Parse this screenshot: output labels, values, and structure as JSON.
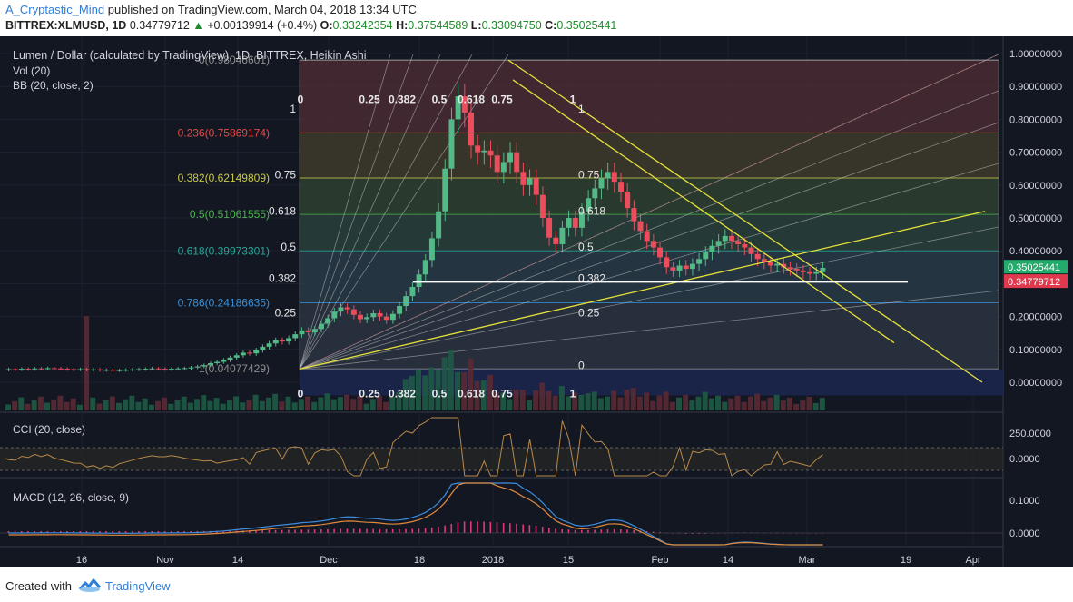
{
  "header": {
    "author": "A_Cryptastic_Mind",
    "published": "published on TradingView.com, March 04, 2018 13:34 UTC",
    "symbol": "BITTREX:XLMUSD, 1D",
    "last": "0.34779712",
    "change": "+0.00139914 (+0.4%)",
    "o_label": "O:",
    "o": "0.33242354",
    "h_label": "H:",
    "h": "0.37544589",
    "l_label": "L:",
    "l": "0.33094750",
    "c_label": "C:",
    "c": "0.35025441"
  },
  "legend": {
    "title": "Lumen / Dollar (calculated by TradingView), 1D, BITTREX, Heikin Ashi",
    "vol": "Vol (20)",
    "bb": "BB (20, close, 2)",
    "cci": "CCI (20, close)",
    "macd": "MACD (12, 26, close, 9)"
  },
  "footer": {
    "created": "Created with",
    "brand": "TradingView"
  },
  "colors": {
    "up": "#53b987",
    "down": "#eb4d5c",
    "fib_line": "#ffffff",
    "trendline": "#e5e03a",
    "price_badge_up": "#22ab6a",
    "price_badge_down": "#e0394d"
  },
  "chart_data": {
    "type": "candlestick",
    "title": "Lumen / Dollar (calculated by TradingView), 1D, BITTREX, Heikin Ashi",
    "x_tick_labels": [
      "16",
      "Nov",
      "14",
      "Dec",
      "18",
      "2018",
      "15",
      "Feb",
      "14",
      "Mar",
      "19",
      "Apr"
    ],
    "y_tick_labels": [
      "1.00000000",
      "0.90000000",
      "0.80000000",
      "0.70000000",
      "0.60000000",
      "0.50000000",
      "0.40000000",
      "0.30000000",
      "0.20000000",
      "0.10000000",
      "0.00000000"
    ],
    "ylim": [
      -0.04,
      1.02
    ],
    "current_price_labels": [
      "0.35025441",
      "0.34779712"
    ],
    "fib_retracement": [
      {
        "label": "0(0.98046601)",
        "value": 0.98046601
      },
      {
        "label": "0.236(0.75869174)",
        "value": 0.75869174
      },
      {
        "label": "0.382(0.62149809)",
        "value": 0.62149809
      },
      {
        "label": "0.5(0.51061555)",
        "value": 0.51061555
      },
      {
        "label": "0.618(0.39973301)",
        "value": 0.39973301
      },
      {
        "label": "0.786(0.24186635)",
        "value": 0.24186635
      },
      {
        "label": "1(0.04077429)",
        "value": 0.04077429
      }
    ],
    "fan_labels": [
      "0",
      "0.25",
      "0.382",
      "0.5",
      "0.618",
      "0.75",
      "1"
    ],
    "fib_labels": [
      "0",
      "0.25",
      "0.382",
      "0.5",
      "0.618",
      "0.75",
      "1"
    ],
    "support_level": 0.305,
    "candles": [
      [
        0.038,
        0.04
      ],
      [
        0.04,
        0.039
      ],
      [
        0.039,
        0.041
      ],
      [
        0.041,
        0.04
      ],
      [
        0.04,
        0.042
      ],
      [
        0.042,
        0.041
      ],
      [
        0.041,
        0.043
      ],
      [
        0.043,
        0.042
      ],
      [
        0.042,
        0.041
      ],
      [
        0.041,
        0.04
      ],
      [
        0.04,
        0.039
      ],
      [
        0.039,
        0.04
      ],
      [
        0.04,
        0.038
      ],
      [
        0.038,
        0.039
      ],
      [
        0.039,
        0.037
      ],
      [
        0.037,
        0.038
      ],
      [
        0.038,
        0.036
      ],
      [
        0.036,
        0.037
      ],
      [
        0.037,
        0.038
      ],
      [
        0.038,
        0.039
      ],
      [
        0.039,
        0.04
      ],
      [
        0.04,
        0.041
      ],
      [
        0.041,
        0.042
      ],
      [
        0.042,
        0.041
      ],
      [
        0.041,
        0.04
      ],
      [
        0.04,
        0.041
      ],
      [
        0.041,
        0.042
      ],
      [
        0.042,
        0.043
      ],
      [
        0.043,
        0.045
      ],
      [
        0.045,
        0.048
      ],
      [
        0.048,
        0.052
      ],
      [
        0.052,
        0.058
      ],
      [
        0.058,
        0.062
      ],
      [
        0.062,
        0.068
      ],
      [
        0.068,
        0.075
      ],
      [
        0.075,
        0.082
      ],
      [
        0.082,
        0.09
      ],
      [
        0.09,
        0.088
      ],
      [
        0.088,
        0.098
      ],
      [
        0.098,
        0.108
      ],
      [
        0.108,
        0.118
      ],
      [
        0.118,
        0.128
      ],
      [
        0.128,
        0.124
      ],
      [
        0.124,
        0.134
      ],
      [
        0.134,
        0.146
      ],
      [
        0.146,
        0.158
      ],
      [
        0.158,
        0.152
      ],
      [
        0.152,
        0.162
      ],
      [
        0.162,
        0.178
      ],
      [
        0.178,
        0.195
      ],
      [
        0.195,
        0.215
      ],
      [
        0.215,
        0.228
      ],
      [
        0.228,
        0.222
      ],
      [
        0.222,
        0.205
      ],
      [
        0.205,
        0.192
      ],
      [
        0.192,
        0.198
      ],
      [
        0.198,
        0.21
      ],
      [
        0.21,
        0.2
      ],
      [
        0.2,
        0.19
      ],
      [
        0.19,
        0.208
      ],
      [
        0.208,
        0.232
      ],
      [
        0.232,
        0.262
      ],
      [
        0.262,
        0.29
      ],
      [
        0.29,
        0.328
      ],
      [
        0.328,
        0.372
      ],
      [
        0.372,
        0.438
      ],
      [
        0.438,
        0.52
      ],
      [
        0.52,
        0.65
      ],
      [
        0.65,
        0.8
      ],
      [
        0.8,
        0.87
      ],
      [
        0.87,
        0.82
      ],
      [
        0.82,
        0.72
      ],
      [
        0.72,
        0.7
      ],
      [
        0.7,
        0.705
      ],
      [
        0.705,
        0.69
      ],
      [
        0.69,
        0.64
      ],
      [
        0.64,
        0.67
      ],
      [
        0.67,
        0.7
      ],
      [
        0.7,
        0.64
      ],
      [
        0.64,
        0.6
      ],
      [
        0.6,
        0.62
      ],
      [
        0.62,
        0.57
      ],
      [
        0.57,
        0.5
      ],
      [
        0.5,
        0.44
      ],
      [
        0.44,
        0.42
      ],
      [
        0.42,
        0.47
      ],
      [
        0.47,
        0.5
      ],
      [
        0.5,
        0.47
      ],
      [
        0.47,
        0.52
      ],
      [
        0.52,
        0.56
      ],
      [
        0.56,
        0.59
      ],
      [
        0.59,
        0.62
      ],
      [
        0.62,
        0.64
      ],
      [
        0.64,
        0.61
      ],
      [
        0.61,
        0.58
      ],
      [
        0.58,
        0.53
      ],
      [
        0.53,
        0.49
      ],
      [
        0.49,
        0.46
      ],
      [
        0.46,
        0.43
      ],
      [
        0.43,
        0.41
      ],
      [
        0.41,
        0.38
      ],
      [
        0.38,
        0.35
      ],
      [
        0.35,
        0.34
      ],
      [
        0.34,
        0.355
      ],
      [
        0.355,
        0.345
      ],
      [
        0.345,
        0.36
      ],
      [
        0.36,
        0.375
      ],
      [
        0.375,
        0.395
      ],
      [
        0.395,
        0.415
      ],
      [
        0.415,
        0.43
      ],
      [
        0.43,
        0.445
      ],
      [
        0.445,
        0.43
      ],
      [
        0.43,
        0.42
      ],
      [
        0.42,
        0.41
      ],
      [
        0.41,
        0.39
      ],
      [
        0.39,
        0.375
      ],
      [
        0.375,
        0.365
      ],
      [
        0.365,
        0.355
      ],
      [
        0.355,
        0.36
      ],
      [
        0.36,
        0.35
      ],
      [
        0.35,
        0.345
      ],
      [
        0.345,
        0.34
      ],
      [
        0.34,
        0.335
      ],
      [
        0.335,
        0.33
      ],
      [
        0.33,
        0.335
      ],
      [
        0.335,
        0.348
      ]
    ]
  }
}
